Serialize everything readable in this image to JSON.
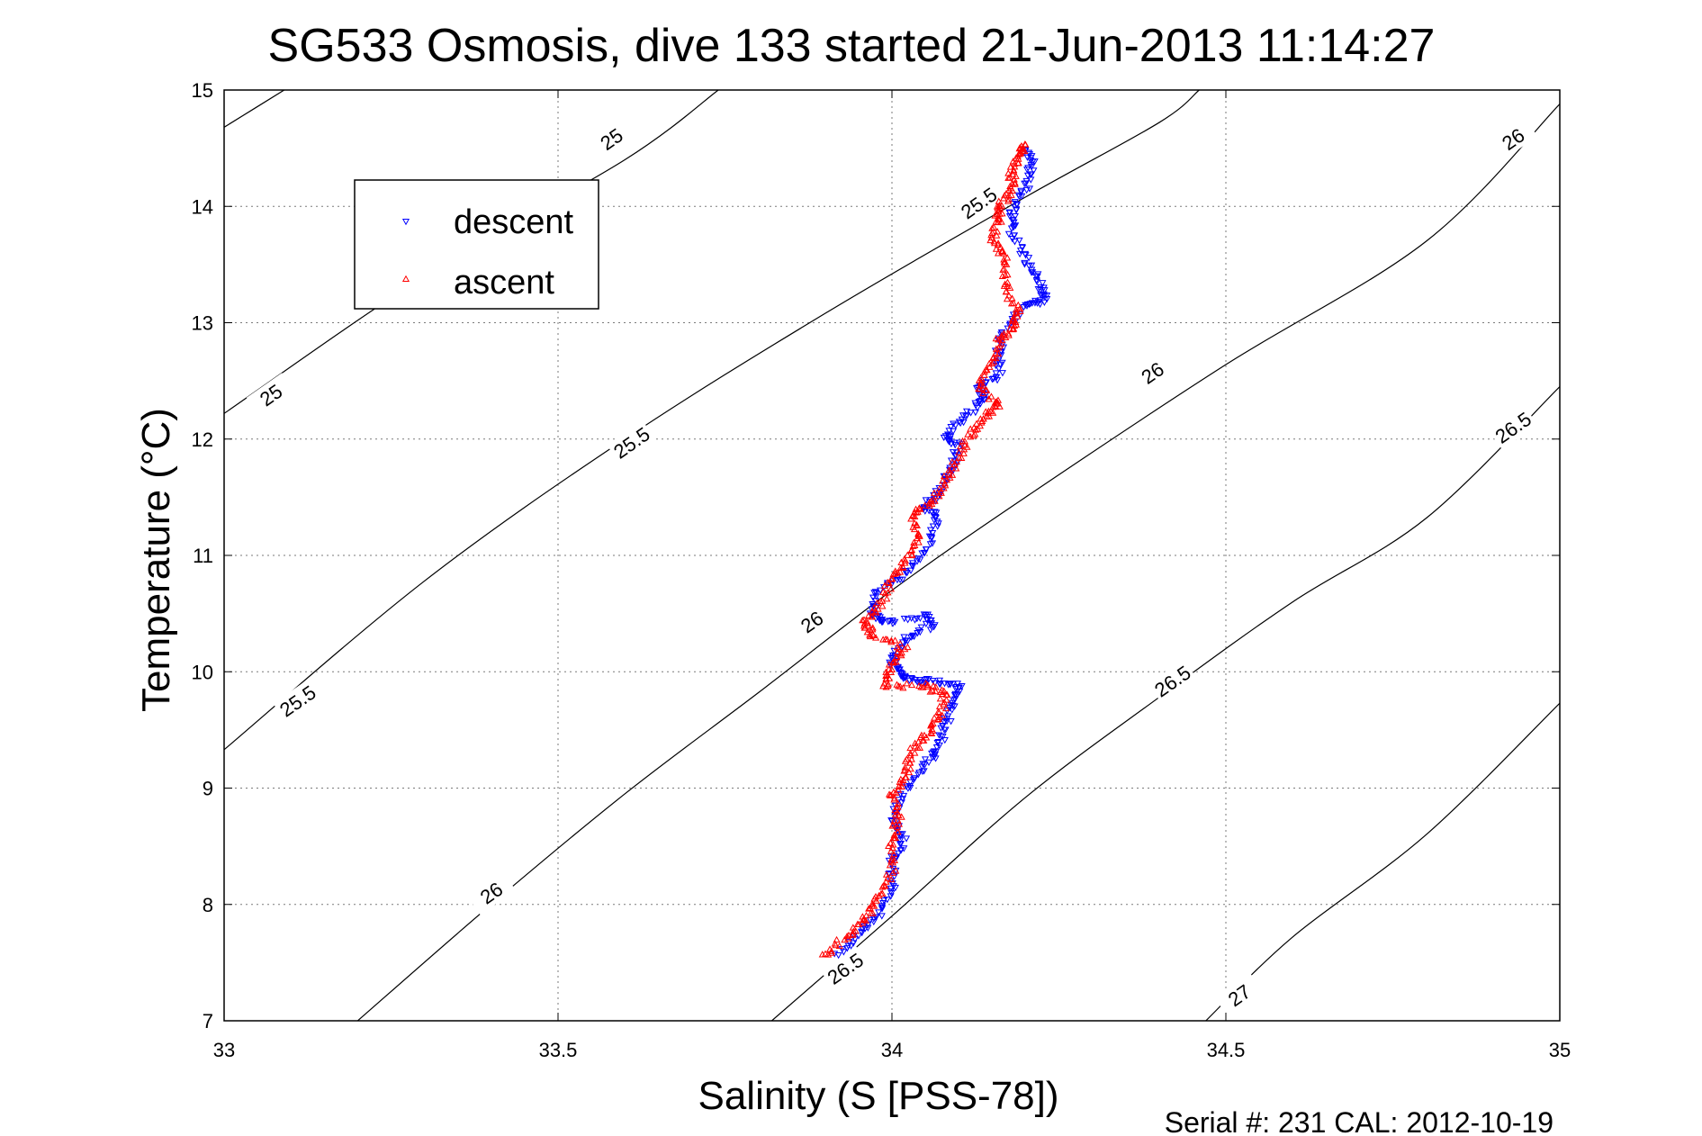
{
  "chart_data": {
    "type": "scatter",
    "title": "SG533 Osmosis, dive 133 started 21-Jun-2013 11:14:27",
    "xlabel": "Salinity (S [PSS-78])",
    "ylabel": "Temperature (°C)",
    "xlim": [
      33,
      35
    ],
    "ylim": [
      7,
      15
    ],
    "xticks": [
      33,
      33.5,
      34,
      34.5,
      35
    ],
    "xtick_labels": [
      "33",
      "33.5",
      "34",
      "34.5",
      "35"
    ],
    "yticks": [
      7,
      8,
      9,
      10,
      11,
      12,
      13,
      14,
      15
    ],
    "ytick_labels": [
      "7",
      "8",
      "9",
      "10",
      "11",
      "12",
      "13",
      "14",
      "15"
    ],
    "grid": true,
    "legend_position": "top-left",
    "footer": "Serial #: 231  CAL: 2012-10-19",
    "density_contours": [
      {
        "label": "25",
        "points": [
          [
            33.0,
            14.68
          ],
          [
            33.09,
            15.0
          ]
        ],
        "label_at": [
          [
            33.58,
            14.58
          ],
          [
            33.07,
            12.38
          ]
        ]
      },
      {
        "label": "25",
        "points": [
          [
            33.0,
            12.22
          ],
          [
            33.3,
            13.4
          ],
          [
            33.6,
            14.4
          ],
          [
            33.74,
            15.0
          ]
        ],
        "label_at": []
      },
      {
        "label": "25.5",
        "points": [
          [
            33.0,
            9.33
          ],
          [
            33.3,
            10.78
          ],
          [
            33.6,
            12.0
          ],
          [
            33.9,
            13.08
          ],
          [
            34.2,
            14.08
          ],
          [
            34.4,
            14.72
          ],
          [
            34.46,
            15.0
          ]
        ],
        "label_at": [
          [
            34.13,
            14.03
          ],
          [
            33.61,
            11.97
          ],
          [
            33.11,
            9.75
          ]
        ]
      },
      {
        "label": "26",
        "points": [
          [
            33.2,
            7.0
          ],
          [
            33.4,
            8.0
          ],
          [
            33.6,
            8.95
          ],
          [
            33.8,
            9.82
          ],
          [
            34.0,
            10.7
          ],
          [
            34.2,
            11.5
          ],
          [
            34.5,
            12.64
          ],
          [
            34.8,
            13.7
          ],
          [
            35.0,
            14.88
          ]
        ],
        "label_at": [
          [
            34.93,
            14.58
          ],
          [
            34.39,
            12.57
          ],
          [
            33.88,
            10.43
          ],
          [
            33.4,
            8.1
          ]
        ]
      },
      {
        "label": "26.5",
        "points": [
          [
            33.82,
            7.0
          ],
          [
            34.0,
            7.9
          ],
          [
            34.2,
            8.92
          ],
          [
            34.4,
            9.78
          ],
          [
            34.6,
            10.6
          ],
          [
            34.8,
            11.32
          ],
          [
            35.0,
            12.45
          ]
        ],
        "label_at": [
          [
            34.93,
            12.1
          ],
          [
            34.42,
            9.92
          ],
          [
            33.93,
            7.45
          ]
        ]
      },
      {
        "label": "27",
        "points": [
          [
            34.47,
            7.0
          ],
          [
            34.6,
            7.72
          ],
          [
            34.8,
            8.6
          ],
          [
            35.0,
            9.73
          ]
        ],
        "label_at": [
          [
            34.52,
            7.22
          ]
        ]
      }
    ],
    "series": [
      {
        "name": "descent",
        "color": "#0000ff",
        "marker": "triangle-down",
        "profile": [
          [
            33.92,
            7.56
          ],
          [
            33.95,
            7.75
          ],
          [
            33.98,
            7.92
          ],
          [
            34.0,
            8.15
          ],
          [
            34.0,
            8.38
          ],
          [
            34.02,
            8.55
          ],
          [
            34.0,
            8.75
          ],
          [
            34.02,
            9.0
          ],
          [
            34.05,
            9.2
          ],
          [
            34.07,
            9.35
          ],
          [
            34.08,
            9.55
          ],
          [
            34.09,
            9.72
          ],
          [
            34.1,
            9.88
          ],
          [
            34.06,
            9.92
          ],
          [
            34.03,
            9.93
          ],
          [
            34.01,
            9.98
          ],
          [
            34.0,
            10.1
          ],
          [
            34.02,
            10.28
          ],
          [
            34.06,
            10.4
          ],
          [
            34.05,
            10.48
          ],
          [
            33.99,
            10.42
          ],
          [
            33.97,
            10.5
          ],
          [
            33.98,
            10.7
          ],
          [
            34.02,
            10.85
          ],
          [
            34.05,
            11.05
          ],
          [
            34.07,
            11.3
          ],
          [
            34.05,
            11.42
          ],
          [
            34.07,
            11.55
          ],
          [
            34.09,
            11.75
          ],
          [
            34.1,
            11.95
          ],
          [
            34.08,
            12.03
          ],
          [
            34.11,
            12.2
          ],
          [
            34.14,
            12.35
          ],
          [
            34.13,
            12.45
          ],
          [
            34.16,
            12.55
          ],
          [
            34.16,
            12.75
          ],
          [
            34.17,
            12.95
          ],
          [
            34.2,
            13.15
          ],
          [
            34.23,
            13.2
          ],
          [
            34.22,
            13.35
          ],
          [
            34.2,
            13.55
          ],
          [
            34.18,
            13.78
          ],
          [
            34.18,
            13.95
          ],
          [
            34.2,
            14.15
          ],
          [
            34.21,
            14.35
          ],
          [
            34.2,
            14.48
          ]
        ]
      },
      {
        "name": "ascent",
        "color": "#ff0000",
        "marker": "triangle-up",
        "profile": [
          [
            33.9,
            7.56
          ],
          [
            33.93,
            7.72
          ],
          [
            33.96,
            7.88
          ],
          [
            33.98,
            8.05
          ],
          [
            34.0,
            8.3
          ],
          [
            34.0,
            8.55
          ],
          [
            34.01,
            8.75
          ],
          [
            34.0,
            8.95
          ],
          [
            34.02,
            9.1
          ],
          [
            34.03,
            9.3
          ],
          [
            34.05,
            9.45
          ],
          [
            34.07,
            9.6
          ],
          [
            34.08,
            9.8
          ],
          [
            34.05,
            9.88
          ],
          [
            33.99,
            9.88
          ],
          [
            34.0,
            10.05
          ],
          [
            34.02,
            10.2
          ],
          [
            33.97,
            10.32
          ],
          [
            33.96,
            10.42
          ],
          [
            33.98,
            10.55
          ],
          [
            34.0,
            10.8
          ],
          [
            34.02,
            10.95
          ],
          [
            34.04,
            11.15
          ],
          [
            34.03,
            11.35
          ],
          [
            34.06,
            11.45
          ],
          [
            34.08,
            11.65
          ],
          [
            34.1,
            11.85
          ],
          [
            34.12,
            12.05
          ],
          [
            34.14,
            12.2
          ],
          [
            34.16,
            12.3
          ],
          [
            34.13,
            12.45
          ],
          [
            34.15,
            12.65
          ],
          [
            34.16,
            12.85
          ],
          [
            34.18,
            12.95
          ],
          [
            34.19,
            13.1
          ],
          [
            34.17,
            13.3
          ],
          [
            34.17,
            13.55
          ],
          [
            34.15,
            13.7
          ],
          [
            34.16,
            13.9
          ],
          [
            34.16,
            14.0
          ],
          [
            34.18,
            14.15
          ],
          [
            34.18,
            14.3
          ],
          [
            34.19,
            14.45
          ],
          [
            34.2,
            14.53
          ]
        ]
      }
    ]
  }
}
